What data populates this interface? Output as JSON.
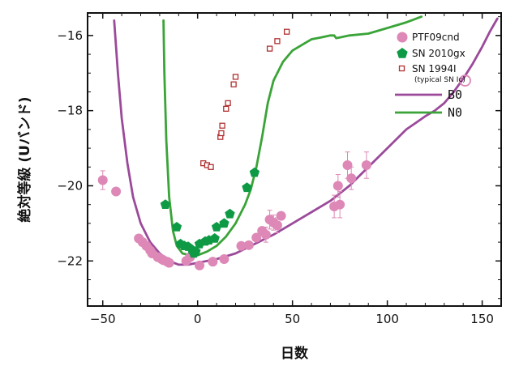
{
  "chart_data": {
    "type": "line",
    "xlabel": "日数",
    "ylabel": "絶対等級 (Uバンド)",
    "xlim": [
      -58,
      160
    ],
    "ylim": [
      -15.4,
      -23.2
    ],
    "x_ticks": [
      -50,
      0,
      50,
      100,
      150
    ],
    "x_tick_labels": [
      "−50",
      "0",
      "50",
      "100",
      "150"
    ],
    "y_ticks": [
      -16,
      -18,
      -20,
      -22
    ],
    "y_tick_labels": [
      "−16",
      "−18",
      "−20",
      "−22"
    ],
    "legend": [
      {
        "label": "PTF09cnd",
        "marker": "circle",
        "color": "#dd88b6"
      },
      {
        "label": "SN 2010gx",
        "marker": "pentagon",
        "color": "#0e9a45"
      },
      {
        "label": "SN 1994I",
        "sublabel": "(typical SN Ic)",
        "marker": "open-square",
        "color": "#b03030"
      },
      {
        "label": "B0",
        "marker": "line",
        "color": "#9b4a9a"
      },
      {
        "label": "N0",
        "marker": "line",
        "color": "#3aa438"
      }
    ],
    "series": [
      {
        "name": "PTF09cnd",
        "marker": "circle",
        "color": "#dd88b6",
        "points": [
          {
            "x": -50,
            "y": -19.85,
            "err": 0.25
          },
          {
            "x": -43,
            "y": -20.15,
            "err": 0
          },
          {
            "x": -31,
            "y": -21.4,
            "err": 0
          },
          {
            "x": -29,
            "y": -21.5,
            "err": 0
          },
          {
            "x": -27,
            "y": -21.6,
            "err": 0
          },
          {
            "x": -25,
            "y": -21.72,
            "err": 0
          },
          {
            "x": -24,
            "y": -21.8,
            "err": 0
          },
          {
            "x": -21,
            "y": -21.9,
            "err": 0
          },
          {
            "x": -19,
            "y": -21.95,
            "err": 0
          },
          {
            "x": -18,
            "y": -21.98,
            "err": 0
          },
          {
            "x": -16,
            "y": -22.02,
            "err": 0
          },
          {
            "x": -15,
            "y": -22.05,
            "err": 0
          },
          {
            "x": -6,
            "y": -22.0,
            "err": 0
          },
          {
            "x": -4,
            "y": -21.9,
            "err": 0
          },
          {
            "x": 1,
            "y": -22.12,
            "err": 0
          },
          {
            "x": 8,
            "y": -22.02,
            "err": 0
          },
          {
            "x": 14,
            "y": -21.95,
            "err": 0
          },
          {
            "x": 23,
            "y": -21.6,
            "err": 0
          },
          {
            "x": 27,
            "y": -21.58,
            "err": 0
          },
          {
            "x": 31,
            "y": -21.38,
            "err": 0
          },
          {
            "x": 34,
            "y": -21.2,
            "err": 0
          },
          {
            "x": 36,
            "y": -21.3,
            "err": 0.2
          },
          {
            "x": 38,
            "y": -20.9,
            "err": 0.25
          },
          {
            "x": 40,
            "y": -20.98,
            "err": 0.2
          },
          {
            "x": 42,
            "y": -21.05,
            "err": 0.2
          },
          {
            "x": 44,
            "y": -20.8,
            "err": 0
          },
          {
            "x": 72,
            "y": -20.55,
            "err": 0.3
          },
          {
            "x": 75,
            "y": -20.5,
            "err": 0.35
          },
          {
            "x": 74,
            "y": -20.0,
            "err": 0.3
          },
          {
            "x": 79,
            "y": -19.45,
            "err": 0.35
          },
          {
            "x": 81,
            "y": -19.8,
            "err": 0.3
          },
          {
            "x": 89,
            "y": -19.45,
            "err": 0.35
          }
        ]
      },
      {
        "name": "SN 2010gx",
        "marker": "pentagon",
        "color": "#0e9a45",
        "points": [
          {
            "x": -17,
            "y": -20.5
          },
          {
            "x": -11,
            "y": -21.1
          },
          {
            "x": -9,
            "y": -21.55
          },
          {
            "x": -7,
            "y": -21.6
          },
          {
            "x": -5,
            "y": -21.62
          },
          {
            "x": -3,
            "y": -21.7
          },
          {
            "x": -2,
            "y": -21.8
          },
          {
            "x": -1,
            "y": -21.75
          },
          {
            "x": 1,
            "y": -21.55
          },
          {
            "x": 4,
            "y": -21.48
          },
          {
            "x": 6,
            "y": -21.45
          },
          {
            "x": 9,
            "y": -21.4
          },
          {
            "x": 10,
            "y": -21.1
          },
          {
            "x": 14,
            "y": -21.0
          },
          {
            "x": 17,
            "y": -20.75
          },
          {
            "x": 26,
            "y": -20.05
          },
          {
            "x": 30,
            "y": -19.65
          }
        ]
      },
      {
        "name": "SN 1994I",
        "marker": "open-square",
        "color": "#b03030",
        "points": [
          {
            "x": 3,
            "y": -19.4
          },
          {
            "x": 5,
            "y": -19.45
          },
          {
            "x": 7,
            "y": -19.5
          },
          {
            "x": 12,
            "y": -18.7
          },
          {
            "x": 12.5,
            "y": -18.6
          },
          {
            "x": 13,
            "y": -18.4
          },
          {
            "x": 15,
            "y": -17.95
          },
          {
            "x": 16,
            "y": -17.8
          },
          {
            "x": 19,
            "y": -17.3
          },
          {
            "x": 20,
            "y": -17.1
          },
          {
            "x": 38,
            "y": -16.35
          },
          {
            "x": 42,
            "y": -16.15
          },
          {
            "x": 47,
            "y": -15.9
          }
        ]
      },
      {
        "name": "B0",
        "marker": "line",
        "color": "#9b4a9a",
        "points": [
          {
            "x": -44,
            "y": -15.6
          },
          {
            "x": -42,
            "y": -17.0
          },
          {
            "x": -40,
            "y": -18.2
          },
          {
            "x": -37,
            "y": -19.4
          },
          {
            "x": -34,
            "y": -20.3
          },
          {
            "x": -30,
            "y": -21.0
          },
          {
            "x": -25,
            "y": -21.5
          },
          {
            "x": -20,
            "y": -21.8
          },
          {
            "x": -15,
            "y": -22.0
          },
          {
            "x": -10,
            "y": -22.1
          },
          {
            "x": -5,
            "y": -22.1
          },
          {
            "x": 0,
            "y": -22.05
          },
          {
            "x": 10,
            "y": -21.95
          },
          {
            "x": 20,
            "y": -21.8
          },
          {
            "x": 30,
            "y": -21.55
          },
          {
            "x": 40,
            "y": -21.3
          },
          {
            "x": 50,
            "y": -21.0
          },
          {
            "x": 60,
            "y": -20.7
          },
          {
            "x": 70,
            "y": -20.4
          },
          {
            "x": 80,
            "y": -20.0
          },
          {
            "x": 90,
            "y": -19.5
          },
          {
            "x": 100,
            "y": -19.0
          },
          {
            "x": 110,
            "y": -18.5
          },
          {
            "x": 120,
            "y": -18.15
          },
          {
            "x": 125,
            "y": -18.0
          },
          {
            "x": 130,
            "y": -17.8
          },
          {
            "x": 135,
            "y": -17.5
          },
          {
            "x": 140,
            "y": -17.15
          },
          {
            "x": 145,
            "y": -16.75
          },
          {
            "x": 150,
            "y": -16.3
          },
          {
            "x": 154,
            "y": -15.9
          },
          {
            "x": 158,
            "y": -15.55
          }
        ]
      },
      {
        "name": "N0",
        "marker": "line",
        "color": "#3aa438",
        "points": [
          {
            "x": -18,
            "y": -15.6
          },
          {
            "x": -17.5,
            "y": -17.0
          },
          {
            "x": -16.5,
            "y": -18.8
          },
          {
            "x": -15,
            "y": -20.3
          },
          {
            "x": -13,
            "y": -21.2
          },
          {
            "x": -11,
            "y": -21.6
          },
          {
            "x": -8,
            "y": -21.8
          },
          {
            "x": -4,
            "y": -21.85
          },
          {
            "x": 0,
            "y": -21.85
          },
          {
            "x": 5,
            "y": -21.75
          },
          {
            "x": 10,
            "y": -21.6
          },
          {
            "x": 15,
            "y": -21.35
          },
          {
            "x": 20,
            "y": -21.0
          },
          {
            "x": 25,
            "y": -20.5
          },
          {
            "x": 28,
            "y": -20.1
          },
          {
            "x": 31,
            "y": -19.5
          },
          {
            "x": 34,
            "y": -18.7
          },
          {
            "x": 37,
            "y": -17.8
          },
          {
            "x": 40,
            "y": -17.2
          },
          {
            "x": 45,
            "y": -16.7
          },
          {
            "x": 50,
            "y": -16.4
          },
          {
            "x": 55,
            "y": -16.25
          },
          {
            "x": 60,
            "y": -16.1
          },
          {
            "x": 65,
            "y": -16.05
          },
          {
            "x": 70,
            "y": -16.0
          },
          {
            "x": 72,
            "y": -16.0
          },
          {
            "x": 73,
            "y": -16.07
          },
          {
            "x": 75,
            "y": -16.05
          },
          {
            "x": 80,
            "y": -16.0
          },
          {
            "x": 90,
            "y": -15.95
          },
          {
            "x": 100,
            "y": -15.8
          },
          {
            "x": 110,
            "y": -15.65
          },
          {
            "x": 118,
            "y": -15.5
          }
        ]
      }
    ],
    "annotations": [
      {
        "type": "open-circle",
        "x": 141,
        "y": -17.2,
        "color": "#dd88b6"
      }
    ]
  }
}
